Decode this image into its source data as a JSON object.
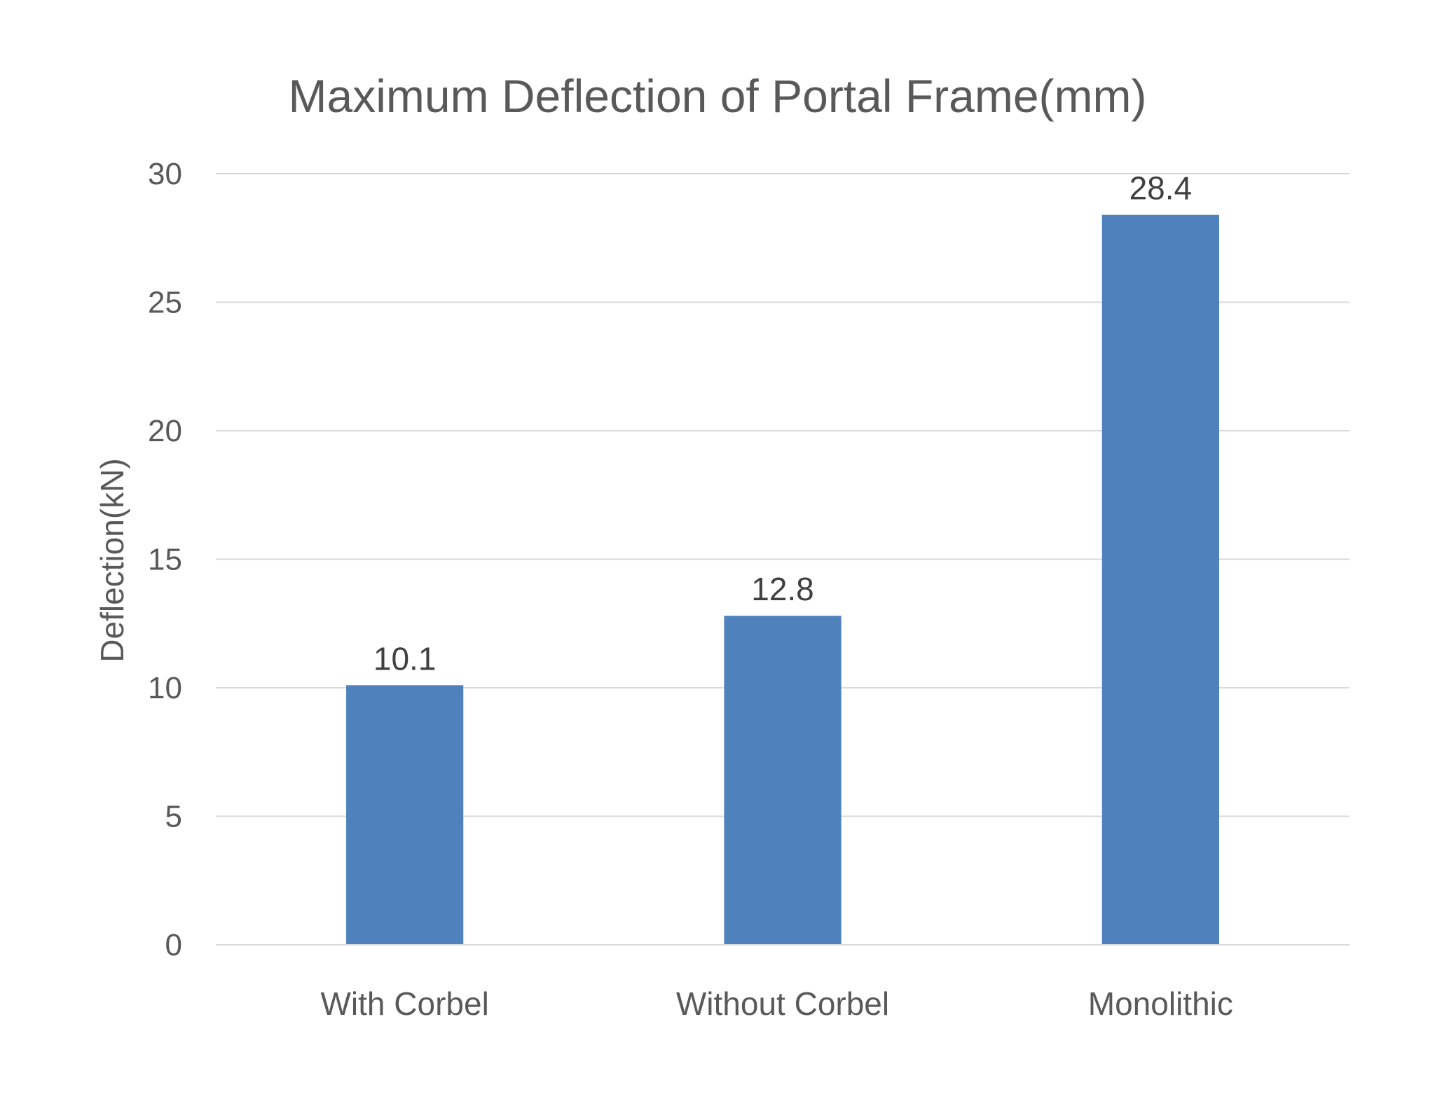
{
  "chart_data": {
    "type": "bar",
    "title": "Maximum Deflection of Portal Frame(mm)",
    "xlabel": "",
    "ylabel": "Deflection(kN)",
    "categories": [
      "With Corbel",
      "Without Corbel",
      "Monolithic"
    ],
    "values": [
      10.1,
      12.8,
      28.4
    ],
    "data_labels": [
      "10.1",
      "12.8",
      "28.4"
    ],
    "ylim": [
      0,
      30
    ],
    "yticks": [
      0,
      5,
      10,
      15,
      20,
      25,
      30
    ],
    "ytick_labels": [
      "0",
      "5",
      "10",
      "15",
      "20",
      "25",
      "30"
    ],
    "grid": true,
    "legend": "none",
    "colors": {
      "bar": "#4f81bd",
      "gridline": "#d9d9d9",
      "text": "#595959",
      "data_label": "#404040"
    }
  }
}
